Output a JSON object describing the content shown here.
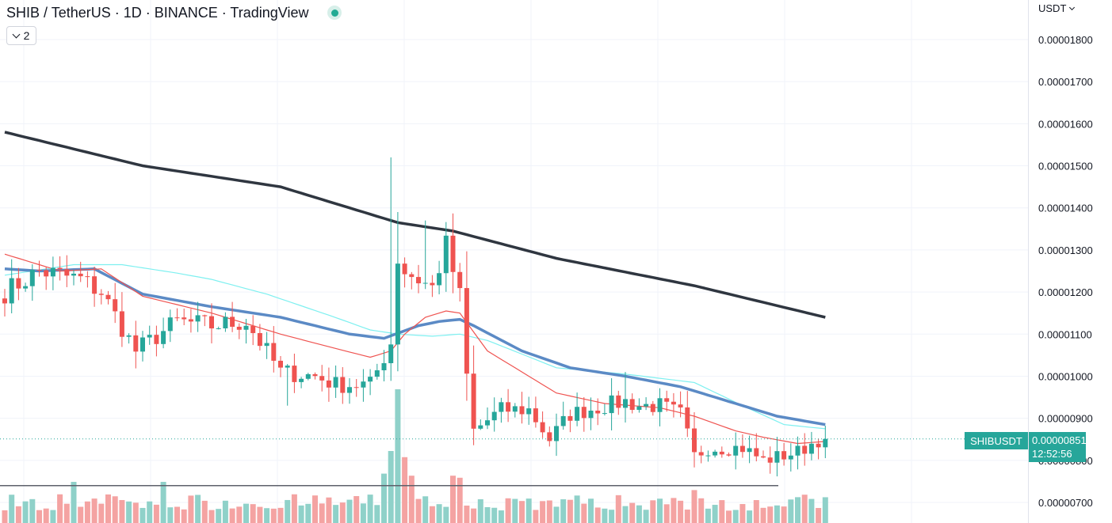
{
  "header": {
    "title": "SHIB / TetherUS · 1D · BINANCE · TradingView",
    "indicator_count": "2"
  },
  "price_axis": {
    "currency": "USDT",
    "ticks": [
      "0.00001800",
      "0.00001700",
      "0.00001600",
      "0.00001500",
      "0.00001400",
      "0.00001300",
      "0.00001200",
      "0.00001100",
      "0.00001000",
      "0.00000900",
      "0.00000800",
      "0.00000700"
    ]
  },
  "last_price": {
    "symbol": "SHIBUSDT",
    "price": "0.00000851",
    "countdown": "12:52:56",
    "value": 8.51e-06
  },
  "colors": {
    "up": "#26a69a",
    "down": "#ef5350",
    "volume_up": "#8fd1c9",
    "volume_down": "#f4a3a2",
    "ma_fast": "#ef5350",
    "ma_mid": "#5b8ac5",
    "ma_cyan": "#7ef0f0",
    "ma_slow": "#2f3640",
    "grid": "#f0f3fa"
  },
  "chart_data": {
    "type": "candlestick",
    "title": "SHIB / TetherUS · 1D · BINANCE",
    "ylim": [
      6.8e-06,
      1.88e-05
    ],
    "candle_count": 120,
    "key_prices": [
      [
        0,
        1.2e-05
      ],
      [
        5,
        1.25e-05
      ],
      [
        11,
        1.23e-05
      ],
      [
        14,
        1.2e-05
      ],
      [
        19,
        1.06e-05
      ],
      [
        25,
        1.13e-05
      ],
      [
        30,
        1.12e-05
      ],
      [
        35,
        1.13e-05
      ],
      [
        40,
        1.01e-05
      ],
      [
        45,
        1e-05
      ],
      [
        48,
        9.8e-06
      ],
      [
        53,
        9.8e-06
      ],
      [
        56,
        1.08e-05
      ],
      [
        57,
        1.28e-05
      ],
      [
        58,
        1.25e-05
      ],
      [
        62,
        1.21e-05
      ],
      [
        64,
        1.31e-05
      ],
      [
        66,
        1.19e-05
      ],
      [
        67,
        1e-05
      ],
      [
        68,
        8.7e-06
      ],
      [
        72,
        9.2e-06
      ],
      [
        76,
        9.2e-06
      ],
      [
        79,
        8.5e-06
      ],
      [
        82,
        9.1e-06
      ],
      [
        87,
        9.3e-06
      ],
      [
        90,
        9.4e-06
      ],
      [
        92,
        9.3e-06
      ],
      [
        95,
        9.3e-06
      ],
      [
        98,
        9.1e-06
      ],
      [
        100,
        8.1e-06
      ],
      [
        102,
        8.3e-06
      ],
      [
        107,
        8.3e-06
      ],
      [
        110,
        8e-06
      ],
      [
        115,
        8.2e-06
      ],
      [
        119,
        8.6e-06
      ]
    ],
    "ma_slow_points": [
      [
        0,
        1.58e-05
      ],
      [
        20,
        1.5e-05
      ],
      [
        40,
        1.45e-05
      ],
      [
        57,
        1.365e-05
      ],
      [
        65,
        1.345e-05
      ],
      [
        80,
        1.28e-05
      ],
      [
        100,
        1.215e-05
      ],
      [
        119,
        1.14e-05
      ]
    ],
    "ma_mid_points": [
      [
        0,
        1.255e-05
      ],
      [
        5,
        1.25e-05
      ],
      [
        13,
        1.255e-05
      ],
      [
        20,
        1.195e-05
      ],
      [
        30,
        1.165e-05
      ],
      [
        40,
        1.14e-05
      ],
      [
        50,
        1.1e-05
      ],
      [
        55,
        1.09e-05
      ],
      [
        60,
        1.12e-05
      ],
      [
        63,
        1.13e-05
      ],
      [
        66,
        1.135e-05
      ],
      [
        68,
        1.12e-05
      ],
      [
        75,
        1.06e-05
      ],
      [
        82,
        1.02e-05
      ],
      [
        90,
        1e-05
      ],
      [
        98,
        9.75e-06
      ],
      [
        105,
        9.4e-06
      ],
      [
        112,
        9.05e-06
      ],
      [
        119,
        8.85e-06
      ]
    ],
    "ma_cyan_points": [
      [
        0,
        1.24e-05
      ],
      [
        10,
        1.265e-05
      ],
      [
        17,
        1.265e-05
      ],
      [
        25,
        1.245e-05
      ],
      [
        30,
        1.23e-05
      ],
      [
        38,
        1.195e-05
      ],
      [
        47,
        1.145e-05
      ],
      [
        53,
        1.11e-05
      ],
      [
        57,
        1.1e-05
      ],
      [
        62,
        1.095e-05
      ],
      [
        66,
        1.1e-05
      ],
      [
        70,
        1.085e-05
      ],
      [
        80,
        1.02e-05
      ],
      [
        90,
        1.005e-05
      ],
      [
        100,
        9.85e-06
      ],
      [
        107,
        9.3e-06
      ],
      [
        113,
        8.85e-06
      ],
      [
        119,
        8.75e-06
      ]
    ],
    "ma_fast_points": [
      [
        0,
        1.29e-05
      ],
      [
        8,
        1.25e-05
      ],
      [
        14,
        1.255e-05
      ],
      [
        20,
        1.19e-05
      ],
      [
        30,
        1.15e-05
      ],
      [
        40,
        1.1e-05
      ],
      [
        47,
        1.07e-05
      ],
      [
        53,
        1.045e-05
      ],
      [
        56,
        1.06e-05
      ],
      [
        58,
        1.1e-05
      ],
      [
        61,
        1.14e-05
      ],
      [
        64,
        1.155e-05
      ],
      [
        66,
        1.15e-05
      ],
      [
        70,
        1.06e-05
      ],
      [
        75,
        1.01e-05
      ],
      [
        80,
        9.6e-06
      ],
      [
        87,
        9.35e-06
      ],
      [
        95,
        9.25e-06
      ],
      [
        100,
        9.05e-06
      ],
      [
        106,
        8.7e-06
      ],
      [
        110,
        8.55e-06
      ],
      [
        115,
        8.4e-06
      ],
      [
        119,
        8.45e-06
      ]
    ],
    "horizontal_line": 7.4e-06,
    "volume_spikes": [
      [
        10,
        2.0
      ],
      [
        23,
        2.0
      ],
      [
        55,
        2.4
      ],
      [
        56,
        3.5
      ],
      [
        57,
        6.5
      ],
      [
        58,
        3.2
      ],
      [
        59,
        2.3
      ],
      [
        65,
        2.3
      ],
      [
        66,
        2.2
      ],
      [
        100,
        1.6
      ],
      [
        101,
        1.2
      ]
    ]
  }
}
